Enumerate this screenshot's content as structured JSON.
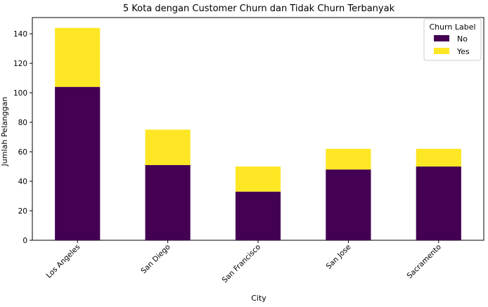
{
  "chart_data": {
    "type": "bar",
    "stacked": true,
    "title": "5 Kota dengan Customer Churn dan Tidak Churn Terbanyak",
    "xlabel": "City",
    "ylabel": "Jumlah Pelanggan",
    "categories": [
      "Los Angeles",
      "San Diego",
      "San Francisco",
      "San Jose",
      "Sacramento"
    ],
    "series": [
      {
        "name": "No",
        "color": "#440154",
        "values": [
          104,
          51,
          33,
          48,
          50
        ]
      },
      {
        "name": "Yes",
        "color": "#fde725",
        "values": [
          40,
          24,
          17,
          14,
          12
        ]
      }
    ],
    "ylim": [
      0,
      151
    ],
    "yticks": [
      0,
      20,
      40,
      60,
      80,
      100,
      120,
      140
    ],
    "legend": {
      "title": "Churn Label",
      "placement": "top-right"
    },
    "grid": false
  }
}
